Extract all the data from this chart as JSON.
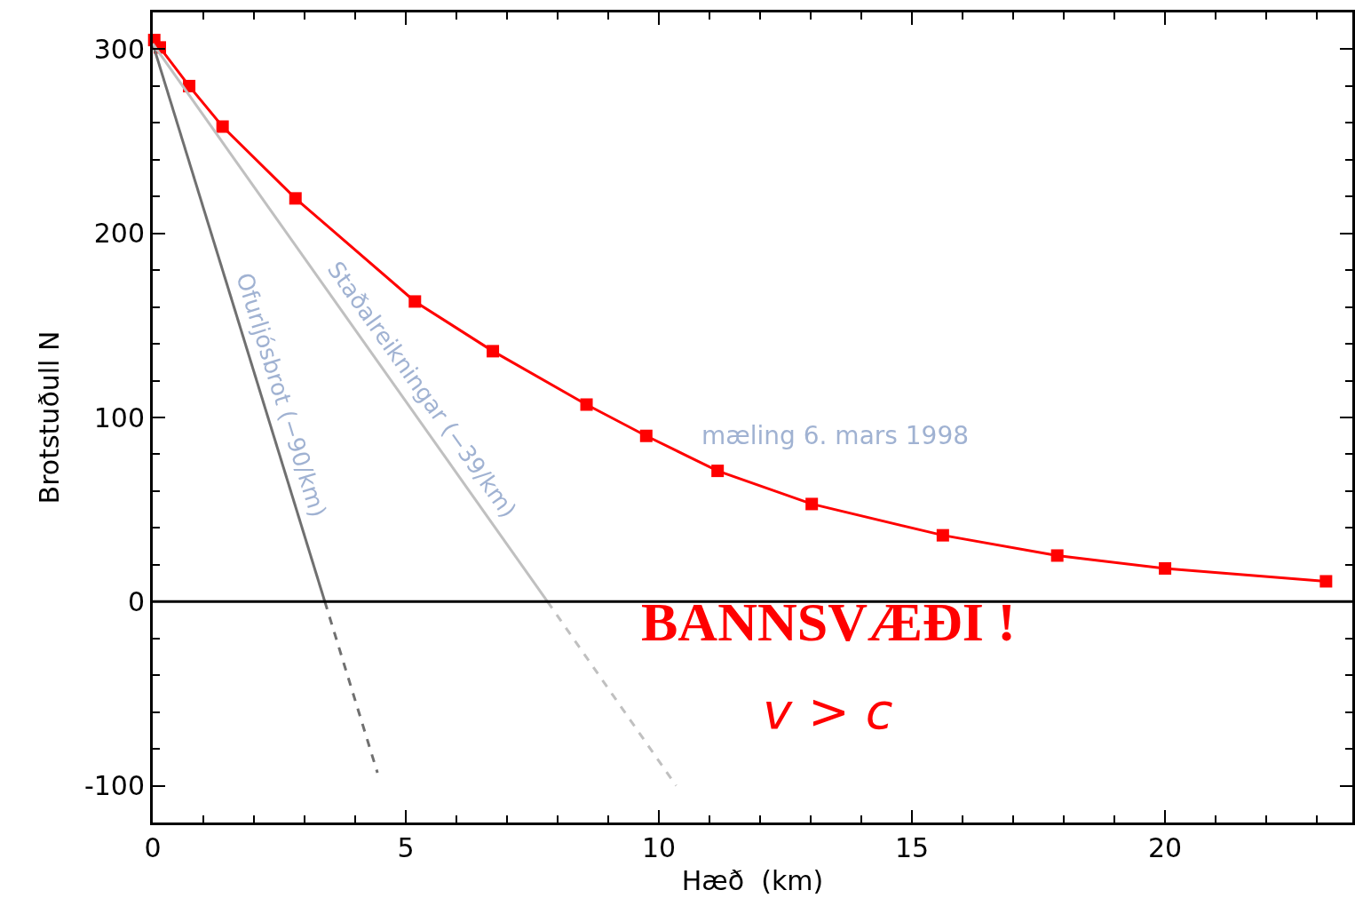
{
  "chart_data": {
    "type": "line",
    "xlabel": "Hæð  (km)",
    "ylabel": "Brotstuðull N",
    "xlim": [
      0,
      23.7
    ],
    "ylim": [
      -120,
      320
    ],
    "xticks": [
      0,
      5,
      10,
      15,
      20
    ],
    "yticks": [
      -100,
      0,
      100,
      200,
      300
    ],
    "legend": false,
    "series": [
      {
        "color": "#ff0000",
        "marker": "square",
        "line_style": "solid",
        "x": [
          0.03,
          0.14,
          0.72,
          1.38,
          2.82,
          5.18,
          6.72,
          8.57,
          9.75,
          11.16,
          13.02,
          15.61,
          17.87,
          20.0,
          23.18
        ],
        "values": [
          305,
          301,
          280,
          258,
          219,
          163,
          136,
          107,
          90,
          71,
          53,
          36,
          25,
          18,
          11
        ]
      },
      {
        "name": "Ofurljósbrot (−90/km)",
        "color": "#707070",
        "marker": "none",
        "line_style": "solid",
        "x": [
          0.0,
          3.4
        ],
        "values": [
          303,
          0
        ]
      },
      {
        "color": "#707070",
        "marker": "none",
        "line_style": "dashed",
        "x": [
          3.4,
          4.44
        ],
        "values": [
          0,
          -93
        ]
      },
      {
        "name": "Staðalreikningar (−39/km)",
        "color": "#c0c0c0",
        "marker": "none",
        "line_style": "solid",
        "x": [
          0.0,
          7.8
        ],
        "values": [
          303,
          0
        ]
      },
      {
        "color": "#c0c0c0",
        "marker": "none",
        "line_style": "dashed",
        "x": [
          7.8,
          10.34
        ],
        "values": [
          0,
          -100
        ]
      }
    ],
    "ref_lines": [
      {
        "axis": "y",
        "value": 0,
        "color": "#000000"
      }
    ],
    "annotations": [
      "mæling 6. mars 1998",
      "BANNSVÆÐI !",
      "v > c"
    ]
  }
}
